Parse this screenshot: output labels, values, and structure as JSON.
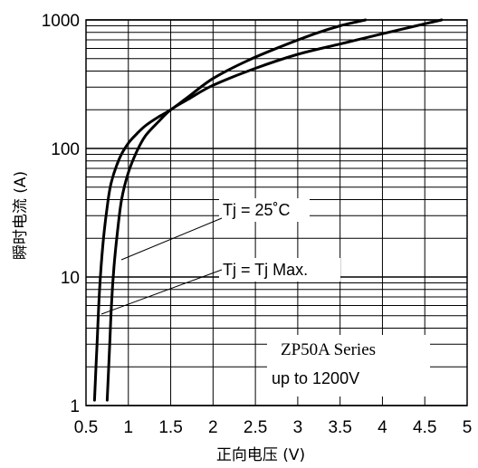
{
  "chart_data": {
    "type": "line",
    "title": "",
    "xlabel": "正向电压 (V)",
    "ylabel": "瞬时电流 (A)",
    "xlim": [
      0.5,
      5
    ],
    "ylim": [
      1,
      1000
    ],
    "y_scale": "log",
    "grid": true,
    "x_ticks": [
      "0.5",
      "1",
      "1.5",
      "2",
      "2.5",
      "3",
      "3.5",
      "4",
      "4.5",
      "5"
    ],
    "y_ticks": [
      "1",
      "10",
      "100",
      "1000"
    ],
    "series": [
      {
        "name": "Tj = 25˚C",
        "x": [
          0.6,
          0.63,
          0.66,
          0.7,
          0.75,
          0.8,
          0.9,
          1.0,
          1.1,
          1.2,
          1.35,
          1.5,
          1.7,
          2.0,
          2.4,
          2.8,
          3.2,
          3.5,
          3.8
        ],
        "y": [
          1.1,
          3,
          8,
          18,
          35,
          55,
          85,
          110,
          130,
          150,
          175,
          200,
          250,
          350,
          480,
          620,
          780,
          900,
          1000
        ]
      },
      {
        "name": "Tj = Tj Max.",
        "x": [
          0.75,
          0.78,
          0.8,
          0.83,
          0.87,
          0.92,
          1.0,
          1.1,
          1.2,
          1.35,
          1.5,
          1.7,
          2.0,
          2.5,
          3.0,
          3.5,
          4.0,
          4.4,
          4.7
        ],
        "y": [
          1.1,
          3,
          6,
          12,
          22,
          40,
          65,
          95,
          125,
          160,
          200,
          240,
          310,
          420,
          540,
          650,
          780,
          900,
          1000
        ]
      }
    ],
    "annotations": {
      "tj25": "Tj = 25˚C",
      "tjmax": "Tj = Tj Max.",
      "series_name": "ZP50A Series",
      "voltage_rating": "up to 1200V"
    }
  }
}
